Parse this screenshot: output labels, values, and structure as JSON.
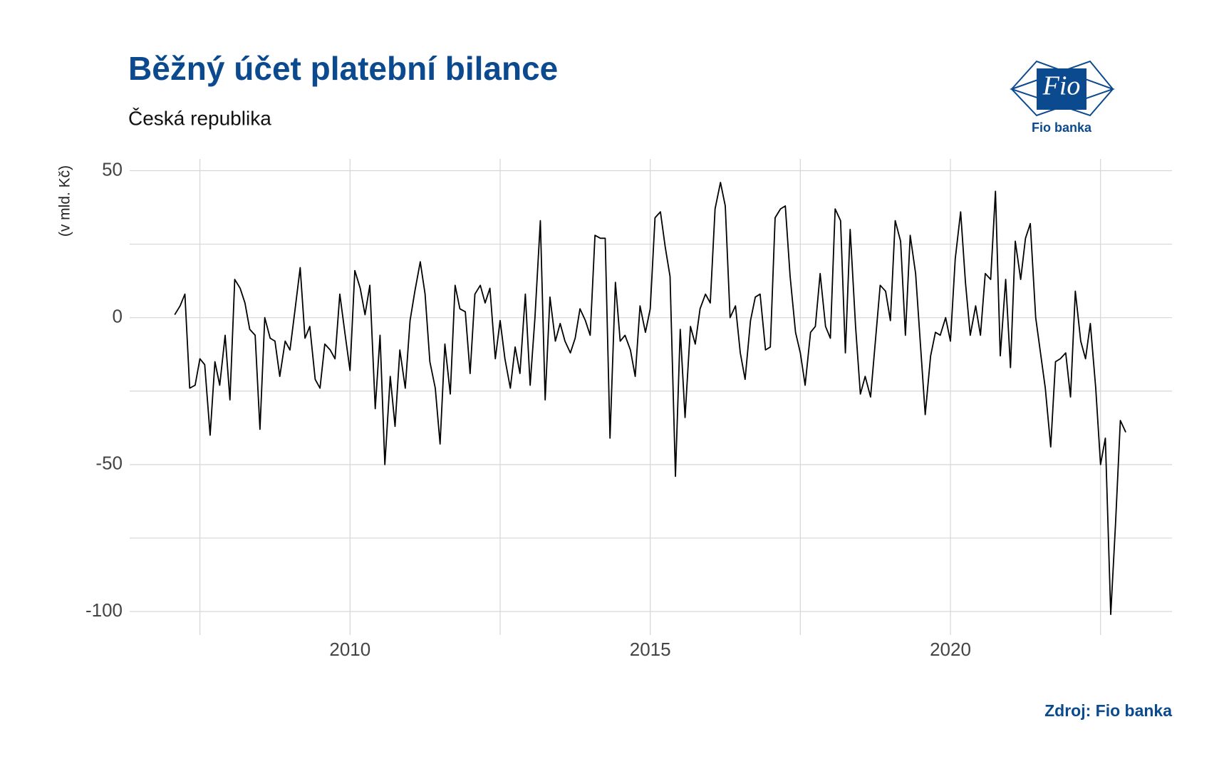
{
  "chart_data": {
    "type": "line",
    "title": "Běžný účet platební bilance",
    "subtitle": "Česká republika",
    "y_label": "(v mld. Kč)",
    "source": "Zdroj: Fio banka",
    "logo": {
      "mark": "Fio",
      "name": "Fio banka"
    },
    "x": [
      2007.08,
      2007.17,
      2007.25,
      2007.33,
      2007.42,
      2007.5,
      2007.58,
      2007.67,
      2007.75,
      2007.83,
      2007.92,
      2008.0,
      2008.08,
      2008.17,
      2008.25,
      2008.33,
      2008.42,
      2008.5,
      2008.58,
      2008.67,
      2008.75,
      2008.83,
      2008.92,
      2009.0,
      2009.08,
      2009.17,
      2009.25,
      2009.33,
      2009.42,
      2009.5,
      2009.58,
      2009.67,
      2009.75,
      2009.83,
      2009.92,
      2010.0,
      2010.08,
      2010.17,
      2010.25,
      2010.33,
      2010.42,
      2010.5,
      2010.58,
      2010.67,
      2010.75,
      2010.83,
      2010.92,
      2011.0,
      2011.08,
      2011.17,
      2011.25,
      2011.33,
      2011.42,
      2011.5,
      2011.58,
      2011.67,
      2011.75,
      2011.83,
      2011.92,
      2012.0,
      2012.08,
      2012.17,
      2012.25,
      2012.33,
      2012.42,
      2012.5,
      2012.58,
      2012.67,
      2012.75,
      2012.83,
      2012.92,
      2013.0,
      2013.08,
      2013.17,
      2013.25,
      2013.33,
      2013.42,
      2013.5,
      2013.58,
      2013.67,
      2013.75,
      2013.83,
      2013.92,
      2014.0,
      2014.08,
      2014.17,
      2014.25,
      2014.33,
      2014.42,
      2014.5,
      2014.58,
      2014.67,
      2014.75,
      2014.83,
      2014.92,
      2015.0,
      2015.08,
      2015.17,
      2015.25,
      2015.33,
      2015.42,
      2015.5,
      2015.58,
      2015.67,
      2015.75,
      2015.83,
      2015.92,
      2016.0,
      2016.08,
      2016.17,
      2016.25,
      2016.33,
      2016.42,
      2016.5,
      2016.58,
      2016.67,
      2016.75,
      2016.83,
      2016.92,
      2017.0,
      2017.08,
      2017.17,
      2017.25,
      2017.33,
      2017.42,
      2017.5,
      2017.58,
      2017.67,
      2017.75,
      2017.83,
      2017.92,
      2018.0,
      2018.08,
      2018.17,
      2018.25,
      2018.33,
      2018.42,
      2018.5,
      2018.58,
      2018.67,
      2018.75,
      2018.83,
      2018.92,
      2019.0,
      2019.08,
      2019.17,
      2019.25,
      2019.33,
      2019.42,
      2019.5,
      2019.58,
      2019.67,
      2019.75,
      2019.83,
      2019.92,
      2020.0,
      2020.08,
      2020.17,
      2020.25,
      2020.33,
      2020.42,
      2020.5,
      2020.58,
      2020.67,
      2020.75,
      2020.83,
      2020.92,
      2021.0,
      2021.08,
      2021.17,
      2021.25,
      2021.33,
      2021.42,
      2021.5,
      2021.58,
      2021.67,
      2021.75,
      2021.83,
      2021.92,
      2022.0,
      2022.08,
      2022.17,
      2022.25,
      2022.33,
      2022.42,
      2022.5,
      2022.58,
      2022.67,
      2022.75,
      2022.83,
      2022.92
    ],
    "series": [
      {
        "color": "#000000",
        "values": [
          1,
          4,
          8,
          -24,
          -23,
          -14,
          -16,
          -40,
          -15,
          -23,
          -6,
          -28,
          13,
          10,
          5,
          -4,
          -6,
          -38,
          0,
          -7,
          -8,
          -20,
          -8,
          -11,
          2,
          17,
          -7,
          -3,
          -21,
          -24,
          -9,
          -11,
          -14,
          8,
          -6,
          -18,
          16,
          10,
          1,
          11,
          -31,
          -6,
          -50,
          -20,
          -37,
          -11,
          -24,
          -1,
          9,
          19,
          8,
          -15,
          -24,
          -43,
          -9,
          -26,
          11,
          3,
          2,
          -19,
          8,
          11,
          5,
          10,
          -14,
          -1,
          -14,
          -24,
          -10,
          -19,
          8,
          -23,
          0,
          33,
          -28,
          7,
          -8,
          -2,
          -8,
          -12,
          -7,
          3,
          -1,
          -6,
          28,
          27,
          27,
          -41,
          12,
          -8,
          -6,
          -11,
          -20,
          4,
          -5,
          3,
          34,
          36,
          24,
          14,
          -54,
          -4,
          -34,
          -3,
          -9,
          3,
          8,
          5,
          37,
          46,
          38,
          0,
          4,
          -12,
          -21,
          -1,
          7,
          8,
          -11,
          -10,
          34,
          37,
          38,
          14,
          -5,
          -12,
          -23,
          -5,
          -3,
          15,
          -3,
          -7,
          37,
          33,
          -12,
          30,
          -3,
          -26,
          -20,
          -27,
          -8,
          11,
          9,
          -1,
          33,
          26,
          -6,
          28,
          15,
          -9,
          -33,
          -13,
          -5,
          -6,
          0,
          -8,
          20,
          36,
          12,
          -6,
          4,
          -6,
          15,
          13,
          43,
          -13,
          13,
          -17,
          26,
          13,
          27,
          32,
          0,
          -12,
          -24,
          -44,
          -15,
          -14,
          -12,
          -27,
          9,
          -8,
          -14,
          -2,
          -24,
          -50,
          -41,
          -101,
          -70,
          -35,
          -39
        ]
      }
    ],
    "xlim": [
      2006.33,
      2023.69
    ],
    "xticks": [
      2010,
      2015,
      2020
    ],
    "x_minor_ticks": [
      2007.5,
      2012.5,
      2017.5,
      2022.5
    ],
    "ylim": [
      -108,
      54
    ],
    "yticks": [
      50,
      0,
      -50,
      -100
    ],
    "y_minor_ticks": [
      25,
      -25,
      -75
    ],
    "grid": true
  }
}
